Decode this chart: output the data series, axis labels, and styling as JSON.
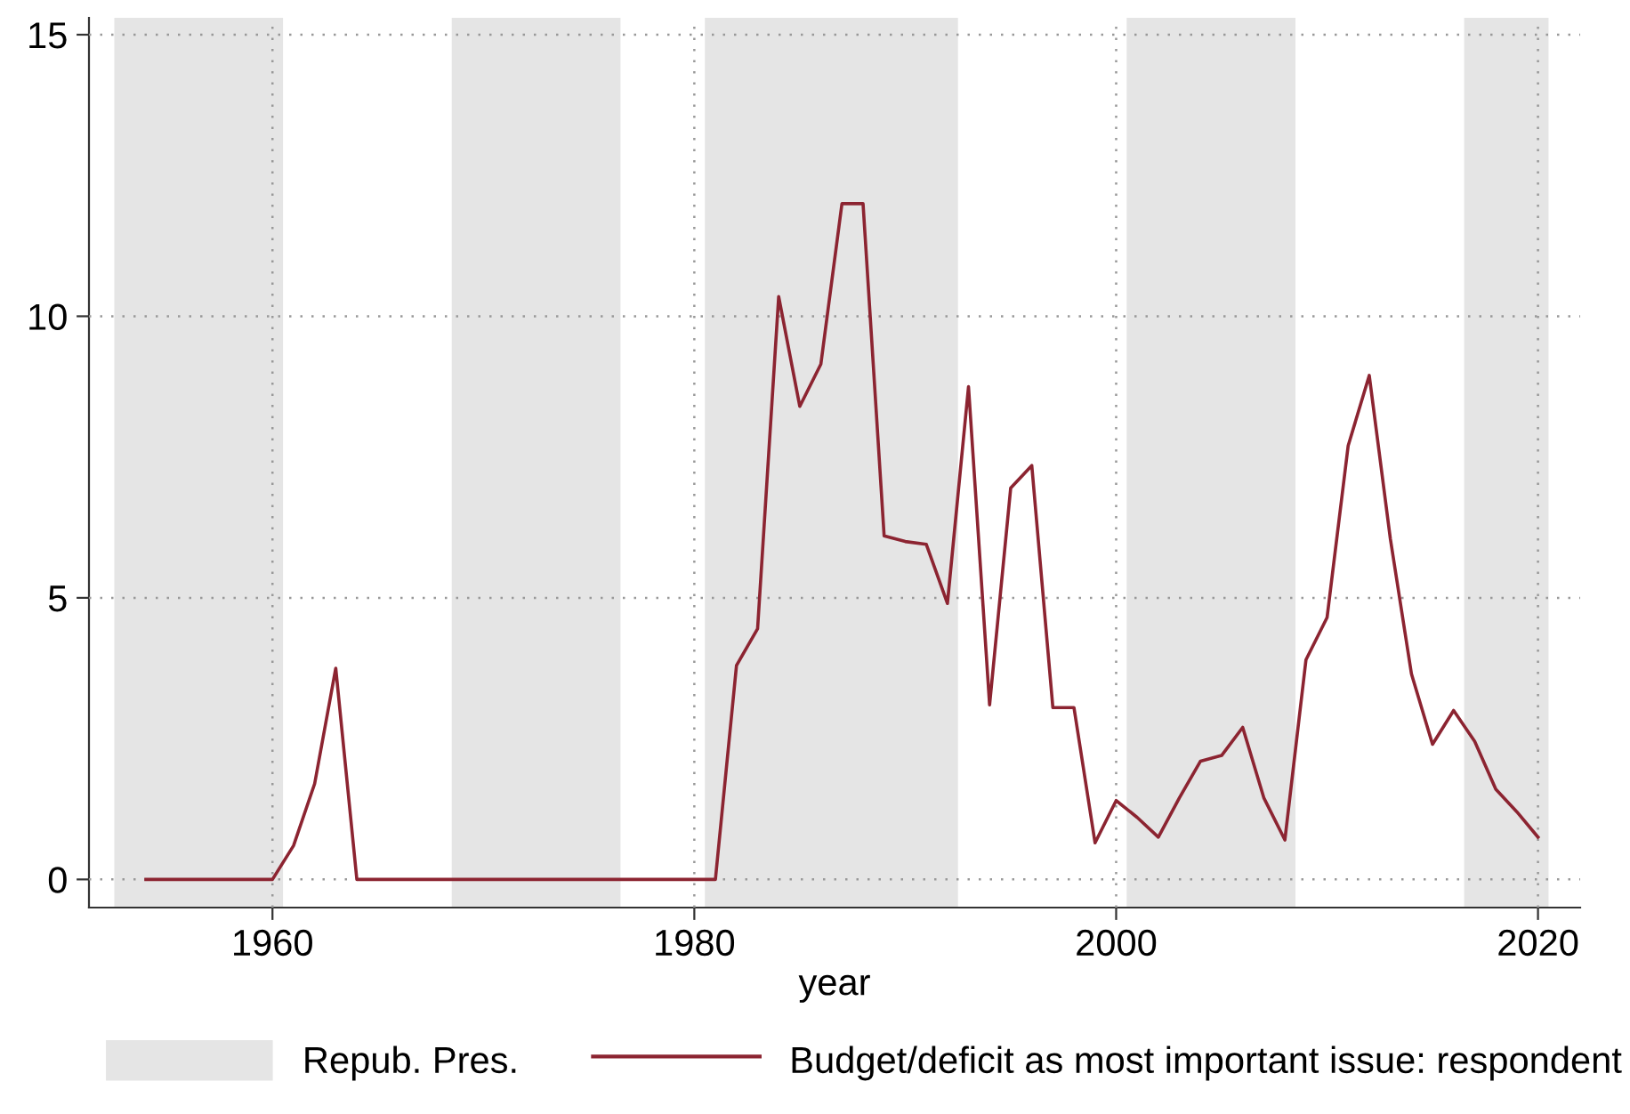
{
  "chart_data": {
    "type": "line",
    "xlabel": "year",
    "bands": [
      {
        "axis": "x",
        "from": 1952.5,
        "to": 1960.5,
        "label": "Repub. Pres.",
        "color": "#e5e5e5"
      },
      {
        "axis": "x",
        "from": 1968.5,
        "to": 1976.5,
        "color": "#e5e5e5"
      },
      {
        "axis": "x",
        "from": 1980.5,
        "to": 1992.5,
        "color": "#e5e5e5"
      },
      {
        "axis": "x",
        "from": 2000.5,
        "to": 2008.5,
        "color": "#e5e5e5"
      },
      {
        "axis": "x",
        "from": 2016.5,
        "to": 2020.5,
        "color": "#e5e5e5"
      }
    ],
    "series": [
      {
        "name": "Budget/deficit as most important issue: respondent",
        "color": "#8c2431",
        "x": [
          1954,
          1955,
          1956,
          1957,
          1958,
          1959,
          1960,
          1961,
          1962,
          1963,
          1964,
          1965,
          1966,
          1967,
          1968,
          1969,
          1970,
          1971,
          1972,
          1973,
          1974,
          1975,
          1976,
          1977,
          1978,
          1979,
          1980,
          1981,
          1982,
          1983,
          1984,
          1985,
          1986,
          1987,
          1988,
          1989,
          1990,
          1991,
          1992,
          1993,
          1994,
          1995,
          1996,
          1997,
          1998,
          1999,
          2000,
          2001,
          2002,
          2003,
          2004,
          2005,
          2006,
          2007,
          2008,
          2009,
          2010,
          2011,
          2012,
          2013,
          2014,
          2015,
          2016,
          2017,
          2018,
          2019,
          2020
        ],
        "values": [
          0,
          0,
          0,
          0,
          0,
          0,
          0,
          0.6,
          1.7,
          3.75,
          0,
          0,
          0,
          0,
          0,
          0,
          0,
          0,
          0,
          0,
          0,
          0,
          0,
          0,
          0,
          0,
          0,
          0,
          3.8,
          4.45,
          10.35,
          8.4,
          9.15,
          12,
          12,
          6.1,
          6.0,
          5.95,
          4.9,
          8.75,
          3.1,
          6.95,
          7.35,
          3.05,
          3.05,
          0.65,
          1.4,
          1.1,
          0.75,
          1.45,
          2.1,
          2.2,
          2.7,
          1.45,
          0.7,
          3.9,
          4.65,
          7.7,
          8.95,
          6.05,
          3.65,
          2.4,
          3.0,
          2.45,
          1.6,
          1.2,
          0.75
        ]
      }
    ],
    "xlim": [
      1951.3,
      2022
    ],
    "xticks": [
      1960,
      1980,
      2000,
      2020
    ],
    "ylim": [
      -0.5,
      15.3
    ],
    "yticks": [
      0,
      5,
      10,
      15
    ],
    "grid": true,
    "legend": "bottom",
    "line_style": "solid",
    "marker": "none"
  }
}
